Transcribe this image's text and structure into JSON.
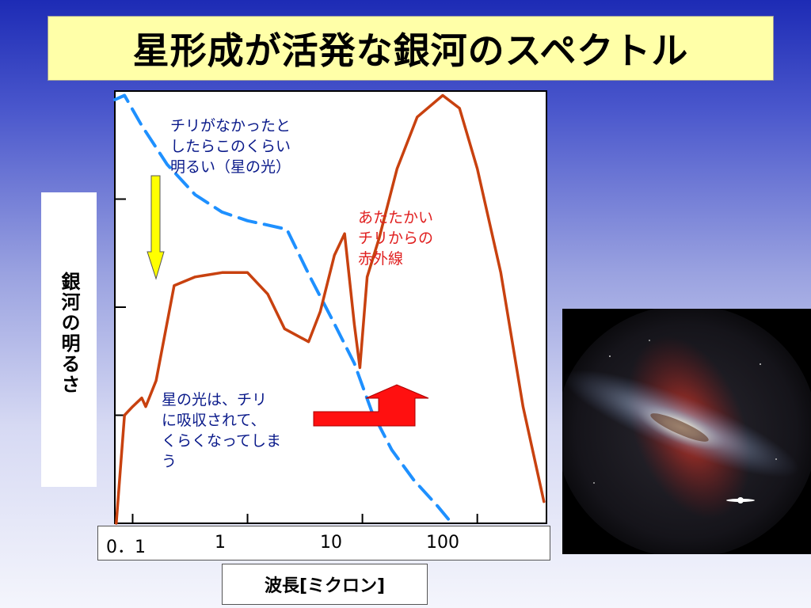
{
  "title": "星形成が活発な銀河のスペクトル",
  "chart_data": {
    "type": "line",
    "title": "星形成が活発な銀河のスペクトル",
    "xlabel": "波長[ミクロン]",
    "ylabel": "銀河の明るさ",
    "x_scale": "log",
    "xlim": [
      0.07,
      400
    ],
    "ylim": [
      0,
      100
    ],
    "x_ticks": [
      {
        "value": 0.1,
        "label": "0．1"
      },
      {
        "value": 1,
        "label": "1"
      },
      {
        "value": 10,
        "label": "10"
      },
      {
        "value": 100,
        "label": "100"
      }
    ],
    "y_ticks_count": 3,
    "grid": false,
    "series": [
      {
        "style": "dashed",
        "color": "#1e90ff",
        "points": [
          [
            0.07,
            98
          ],
          [
            0.085,
            99
          ],
          [
            0.12,
            92
          ],
          [
            0.2,
            83
          ],
          [
            0.35,
            76
          ],
          [
            0.6,
            72
          ],
          [
            1.0,
            70
          ],
          [
            1.5,
            69
          ],
          [
            2.2,
            68
          ],
          [
            3.5,
            57
          ],
          [
            5.5,
            47
          ],
          [
            8.5,
            37
          ],
          [
            12,
            26
          ],
          [
            18,
            17
          ],
          [
            28,
            10
          ],
          [
            45,
            4
          ],
          [
            60,
            0
          ]
        ]
      },
      {
        "style": "solid",
        "color": "#c8410f",
        "points": [
          [
            0.072,
            0
          ],
          [
            0.085,
            25
          ],
          [
            0.1,
            27
          ],
          [
            0.12,
            29
          ],
          [
            0.13,
            27
          ],
          [
            0.16,
            33
          ],
          [
            0.23,
            55
          ],
          [
            0.35,
            57
          ],
          [
            0.6,
            58
          ],
          [
            1.0,
            58
          ],
          [
            1.5,
            53
          ],
          [
            2.1,
            45
          ],
          [
            3.4,
            42
          ],
          [
            4.3,
            49
          ],
          [
            5.7,
            62
          ],
          [
            7.0,
            67
          ],
          [
            8.5,
            46
          ],
          [
            9.5,
            36
          ],
          [
            11,
            57
          ],
          [
            14,
            66
          ],
          [
            20,
            82
          ],
          [
            30,
            94
          ],
          [
            50,
            99
          ],
          [
            70,
            96
          ],
          [
            100,
            82
          ],
          [
            160,
            58
          ],
          [
            250,
            27
          ],
          [
            380,
            5
          ]
        ]
      }
    ],
    "annotations": [
      {
        "text": "チリがなかったと\nしたらこのくらい\n明るい（星の光）",
        "color": "#0a1a8a"
      },
      {
        "text": "あたたかい\nチリからの\n赤外線",
        "color": "#e02020"
      },
      {
        "text": "星の光は、チリ\nに吸収されて、\nくらくなってしま\nう",
        "color": "#0a1a8a"
      }
    ]
  },
  "colors": {
    "title_bg": "#ffffa8",
    "star_arrow": "#ffff00",
    "ir_arrow": "#ff1010"
  },
  "image": {
    "subject": "galaxy-photo"
  }
}
